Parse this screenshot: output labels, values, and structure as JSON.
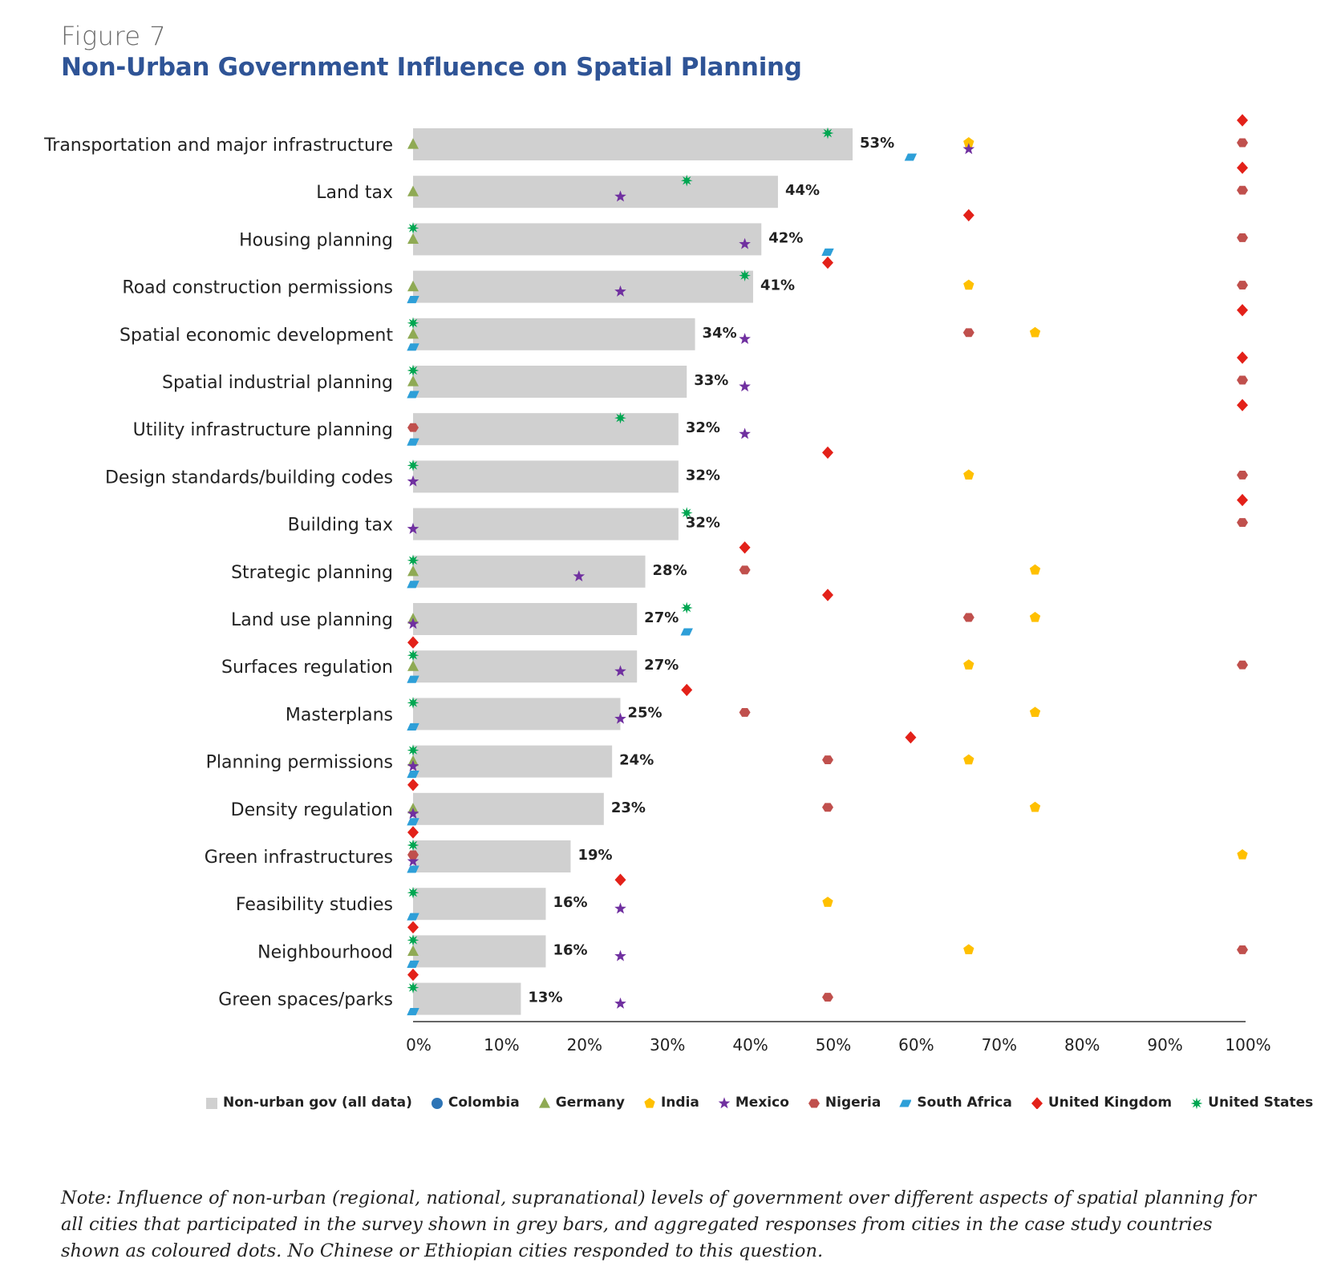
{
  "figure_label": "Figure 7",
  "figure_title": "Non-Urban Government Influence on Spatial Planning",
  "note": "Note: Influence of non-urban (regional, national, supranational) levels of government over different aspects of spatial planning for all cities that participated in the survey shown in grey bars, and aggregated responses from cities in the case study countries shown as coloured dots. No Chinese or Ethiopian cities responded to this question.",
  "colors": {
    "bar": "#d0d0d0",
    "axis": "#333333",
    "Colombia": "#2e75b6",
    "Germany": "#8faa54",
    "India": "#ffc000",
    "Mexico": "#7030a0",
    "Nigeria": "#c0504d",
    "South Africa": "#2e9fd8",
    "United Kingdom": "#e32119",
    "United States": "#00a651"
  },
  "legend": [
    {
      "label": "Non-urban gov (all data)",
      "shape": "square",
      "key": "bar"
    },
    {
      "label": "Colombia",
      "shape": "circle",
      "key": "Colombia"
    },
    {
      "label": "Germany",
      "shape": "triangle",
      "key": "Germany"
    },
    {
      "label": "India",
      "shape": "pentagon",
      "key": "India"
    },
    {
      "label": "Mexico",
      "shape": "star",
      "key": "Mexico"
    },
    {
      "label": "Nigeria",
      "shape": "hexagon",
      "key": "Nigeria"
    },
    {
      "label": "South Africa",
      "shape": "parallelogram",
      "key": "South Africa"
    },
    {
      "label": "United Kingdom",
      "shape": "diamond",
      "key": "United Kingdom"
    },
    {
      "label": "United States",
      "shape": "asterisk",
      "key": "United States"
    }
  ],
  "chart_data": {
    "type": "bar",
    "orientation": "horizontal",
    "title": "Non-Urban Government Influence on Spatial Planning",
    "xlim": [
      0,
      100
    ],
    "x_ticks": [
      "0%",
      "10%",
      "20%",
      "30%",
      "40%",
      "50%",
      "60%",
      "70%",
      "80%",
      "90%",
      "100%"
    ],
    "grid": false,
    "legend_position": "bottom",
    "categories": [
      "Transportation and major infrastructure",
      "Land tax",
      "Housing planning",
      "Road construction permissions",
      "Spatial economic development",
      "Spatial industrial planning",
      "Utility infrastructure planning",
      "Design standards/building codes",
      "Building tax",
      "Strategic planning",
      "Land use planning",
      "Surfaces regulation",
      "Masterplans",
      "Planning permissions",
      "Density regulation",
      "Green infrastructures",
      "Feasibility studies",
      "Neighbourhood",
      "Green spaces/parks"
    ],
    "bar_series": {
      "name": "Non-urban gov (all data)",
      "values": [
        53,
        44,
        42,
        41,
        34,
        33,
        32,
        32,
        32,
        28,
        27,
        27,
        25,
        24,
        23,
        19,
        16,
        16,
        13
      ],
      "labels": [
        "53%",
        "44%",
        "42%",
        "41%",
        "34%",
        "33%",
        "32%",
        "32%",
        "32%",
        "28%",
        "27%",
        "27%",
        "25%",
        "24%",
        "23%",
        "19%",
        "16%",
        "16%",
        "13%"
      ]
    },
    "marker_series": [
      {
        "name": "Colombia",
        "values": [
          null,
          null,
          null,
          null,
          null,
          null,
          null,
          null,
          null,
          null,
          null,
          null,
          null,
          null,
          null,
          null,
          null,
          null,
          null
        ]
      },
      {
        "name": "Germany",
        "values": [
          0,
          0,
          0,
          0,
          0,
          0,
          null,
          null,
          null,
          0,
          0,
          0,
          null,
          0,
          0,
          null,
          null,
          0,
          null
        ]
      },
      {
        "name": "India",
        "values": [
          67,
          null,
          null,
          67,
          75,
          null,
          null,
          67,
          null,
          75,
          75,
          67,
          75,
          67,
          75,
          100,
          50,
          67,
          null
        ]
      },
      {
        "name": "Mexico",
        "values": [
          67,
          25,
          40,
          25,
          40,
          40,
          40,
          0,
          0,
          20,
          0,
          25,
          25,
          0,
          0,
          0,
          25,
          25,
          25
        ]
      },
      {
        "name": "Nigeria",
        "values": [
          100,
          100,
          100,
          100,
          67,
          100,
          0,
          100,
          100,
          40,
          67,
          100,
          40,
          50,
          50,
          0,
          null,
          100,
          50
        ]
      },
      {
        "name": "South Africa",
        "values": [
          60,
          null,
          50,
          0,
          0,
          0,
          0,
          null,
          null,
          0,
          33,
          0,
          0,
          0,
          0,
          0,
          0,
          0,
          0
        ]
      },
      {
        "name": "United Kingdom",
        "values": [
          100,
          100,
          67,
          50,
          100,
          100,
          100,
          50,
          100,
          40,
          50,
          0,
          33,
          60,
          0,
          0,
          25,
          0,
          0
        ]
      },
      {
        "name": "United States",
        "values": [
          50,
          33,
          0,
          40,
          0,
          0,
          25,
          0,
          33,
          0,
          33,
          0,
          0,
          0,
          null,
          0,
          0,
          0,
          0
        ]
      }
    ]
  }
}
